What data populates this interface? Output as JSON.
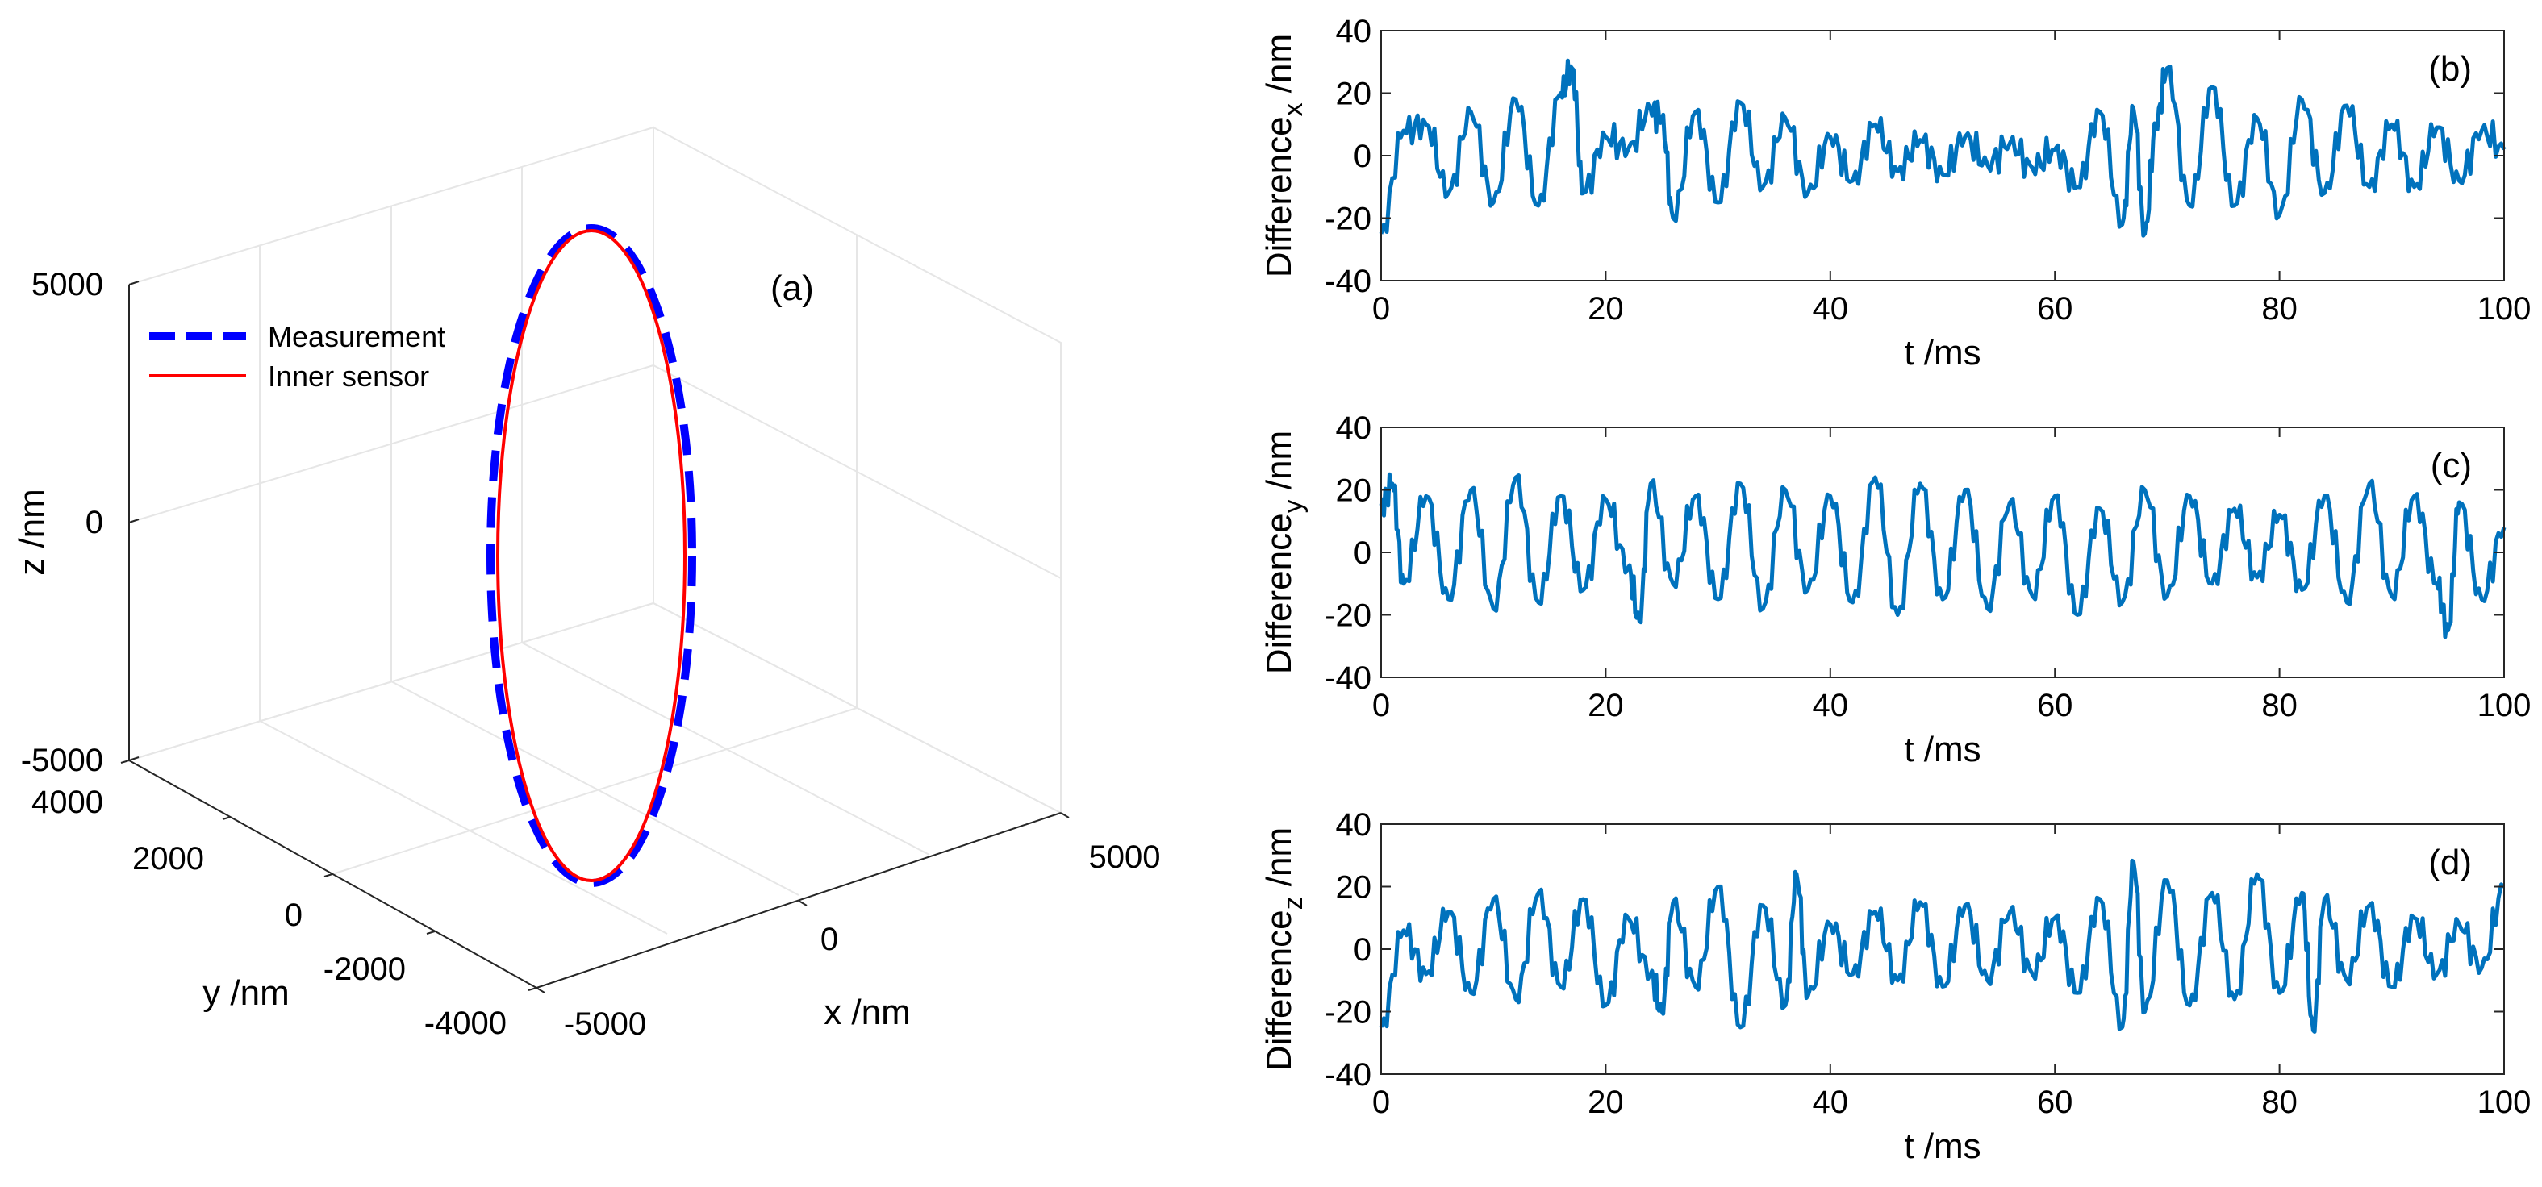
{
  "chart_data": [
    {
      "type": "line3d",
      "panel": "(a)",
      "xlabel": "x /nm",
      "ylabel": "y /nm",
      "zlabel": "z /nm",
      "xlim": [
        -5000,
        5000
      ],
      "ylim": [
        -4000,
        4000
      ],
      "zlim": [
        -5000,
        5000
      ],
      "x_ticks": [
        "-5000",
        "0",
        "5000"
      ],
      "y_ticks": [
        "4000",
        "2000",
        "0",
        "-2000",
        "-4000"
      ],
      "z_ticks": [
        "5000",
        "0",
        "-5000"
      ],
      "legend": [
        {
          "name": "Measurement",
          "color": "#0000ff",
          "style": "dashed"
        },
        {
          "name": "Inner sensor",
          "color": "#ff0000",
          "style": "solid"
        }
      ],
      "series": [
        {
          "name": "Measurement",
          "shape": "circle",
          "center": [
            0,
            0,
            0
          ],
          "radius": 5000,
          "plane": "x-z",
          "color": "#0000ff"
        },
        {
          "name": "Inner sensor",
          "shape": "circle",
          "center": [
            0,
            0,
            0
          ],
          "radius": 5000,
          "plane": "x-z",
          "color": "#ff0000"
        }
      ]
    },
    {
      "type": "line",
      "panel": "(b)",
      "ylabel_main": "Difference",
      "ylabel_sub": "x",
      "ylabel_unit": " /nm",
      "xlabel": "t /ms",
      "xlim": [
        0,
        100
      ],
      "ylim": [
        -40,
        40
      ],
      "x_ticks": [
        "0",
        "20",
        "40",
        "60",
        "80",
        "100"
      ],
      "y_ticks": [
        "40",
        "20",
        "0",
        "-20",
        "-40"
      ],
      "color": "#0072bd",
      "x": [
        0,
        2,
        4,
        6,
        8,
        10,
        12,
        14,
        16,
        17,
        18,
        20,
        22,
        24,
        25,
        26,
        28,
        30,
        32,
        34,
        36,
        38,
        40,
        42,
        44,
        46,
        48,
        50,
        52,
        54,
        56,
        58,
        60,
        62,
        64,
        66,
        67,
        68,
        69,
        70,
        72,
        74,
        76,
        78,
        80,
        82,
        84,
        86,
        88,
        90,
        92,
        94,
        96,
        98,
        100
      ],
      "values": [
        -25,
        8,
        10,
        -12,
        14,
        -15,
        18,
        -16,
        20,
        28,
        -12,
        6,
        2,
        15,
        12,
        -20,
        14,
        -15,
        17,
        -10,
        12,
        -12,
        6,
        -8,
        10,
        -5,
        5,
        -6,
        6,
        -3,
        4,
        -4,
        2,
        -10,
        14,
        -22,
        15,
        -25,
        10,
        28,
        -16,
        22,
        -16,
        12,
        -19,
        18,
        -12,
        16,
        -10,
        10,
        -10,
        9,
        -8,
        8,
        2
      ]
    },
    {
      "type": "line",
      "panel": "(c)",
      "ylabel_main": "Difference",
      "ylabel_sub": "y",
      "ylabel_unit": " /nm",
      "xlabel": "t /ms",
      "xlim": [
        0,
        100
      ],
      "ylim": [
        -40,
        40
      ],
      "x_ticks": [
        "0",
        "20",
        "40",
        "60",
        "80",
        "100"
      ],
      "y_ticks": [
        "40",
        "20",
        "0",
        "-20",
        "-40"
      ],
      "color": "#0072bd",
      "x": [
        0,
        1,
        2,
        4,
        6,
        8,
        10,
        12,
        14,
        16,
        18,
        20,
        22,
        23,
        24,
        26,
        28,
        30,
        32,
        34,
        36,
        38,
        40,
        42,
        44,
        46,
        48,
        50,
        52,
        54,
        56,
        58,
        60,
        62,
        64,
        66,
        68,
        70,
        72,
        74,
        76,
        78,
        80,
        82,
        84,
        86,
        88,
        90,
        92,
        94,
        95,
        96,
        98,
        100
      ],
      "values": [
        15,
        22,
        -10,
        18,
        -15,
        20,
        -18,
        24,
        -16,
        18,
        -12,
        17,
        -5,
        -22,
        22,
        -10,
        18,
        -15,
        22,
        -18,
        20,
        -12,
        18,
        -16,
        24,
        -20,
        22,
        -15,
        20,
        -18,
        16,
        -14,
        18,
        -20,
        14,
        -16,
        20,
        -14,
        18,
        -10,
        14,
        -8,
        12,
        -12,
        18,
        -16,
        22,
        -14,
        18,
        -10,
        -25,
        16,
        -15,
        8
      ]
    },
    {
      "type": "line",
      "panel": "(d)",
      "ylabel_main": "Difference",
      "ylabel_sub": "z",
      "ylabel_unit": " /nm",
      "xlabel": "t /ms",
      "xlim": [
        0,
        100
      ],
      "ylim": [
        -40,
        40
      ],
      "x_ticks": [
        "0",
        "20",
        "40",
        "60",
        "80",
        "100"
      ],
      "y_ticks": [
        "40",
        "20",
        "0",
        "-20",
        "-40"
      ],
      "color": "#0072bd",
      "x": [
        0,
        2,
        4,
        6,
        8,
        10,
        12,
        14,
        16,
        18,
        20,
        22,
        24,
        25,
        26,
        28,
        30,
        32,
        34,
        36,
        37,
        38,
        40,
        42,
        44,
        46,
        48,
        50,
        52,
        54,
        56,
        58,
        60,
        62,
        64,
        66,
        67,
        68,
        70,
        72,
        74,
        76,
        78,
        80,
        82,
        83,
        84,
        86,
        88,
        90,
        92,
        94,
        96,
        98,
        100
      ],
      "values": [
        -25,
        6,
        -8,
        12,
        -14,
        16,
        -16,
        18,
        -12,
        16,
        -18,
        10,
        -8,
        -20,
        15,
        -12,
        20,
        -25,
        14,
        -18,
        24,
        -15,
        8,
        -8,
        12,
        -10,
        15,
        -12,
        14,
        -10,
        12,
        -8,
        10,
        -14,
        16,
        -25,
        28,
        -20,
        22,
        -18,
        18,
        -16,
        24,
        -14,
        18,
        -26,
        16,
        -10,
        14,
        -12,
        10,
        -8,
        8,
        -6,
        20
      ]
    }
  ]
}
